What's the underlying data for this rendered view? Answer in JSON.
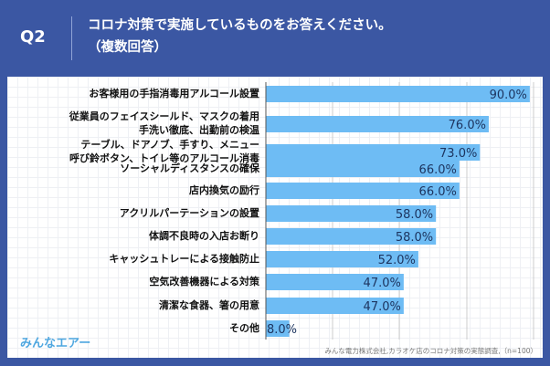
{
  "header": {
    "q": "Q2",
    "title_line1": "コロナ対策で実施しているものをお答えください。",
    "title_line2": "（複数回答）"
  },
  "chart_data": {
    "type": "bar",
    "orientation": "horizontal",
    "xlim": [
      0,
      100
    ],
    "categories": [
      "お客様用の手指消毒用アルコール設置",
      "従業員のフェイスシールド、マスクの着用\n手洗い徹底、出勤前の検温",
      "テーブル、ドアノブ、手すり、メニュー\n呼び鈴ボタン、トイレ等のアルコール消毒",
      "ソーシャルディスタンスの確保",
      "店内換気の励行",
      "アクリルパーテーションの設置",
      "体調不良時の入店お断り",
      "キャッシュトレーによる接触防止",
      "空気改善機器による対策",
      "清潔な食器、箸の用意",
      "その他"
    ],
    "values": [
      90.0,
      76.0,
      73.0,
      66.0,
      66.0,
      58.0,
      58.0,
      52.0,
      47.0,
      47.0,
      8.0
    ],
    "value_labels": [
      "90.0%",
      "76.0%",
      "73.0%",
      "66.0%",
      "66.0%",
      "58.0%",
      "58.0%",
      "52.0%",
      "47.0%",
      "47.0%",
      "8.0%"
    ],
    "bar_color": "#6ebcf4"
  },
  "footer": {
    "logo": "みんなエアー",
    "source": "みんな電力株式会社,カラオケ店のコロナ対策の実態調査,（n=100）"
  }
}
